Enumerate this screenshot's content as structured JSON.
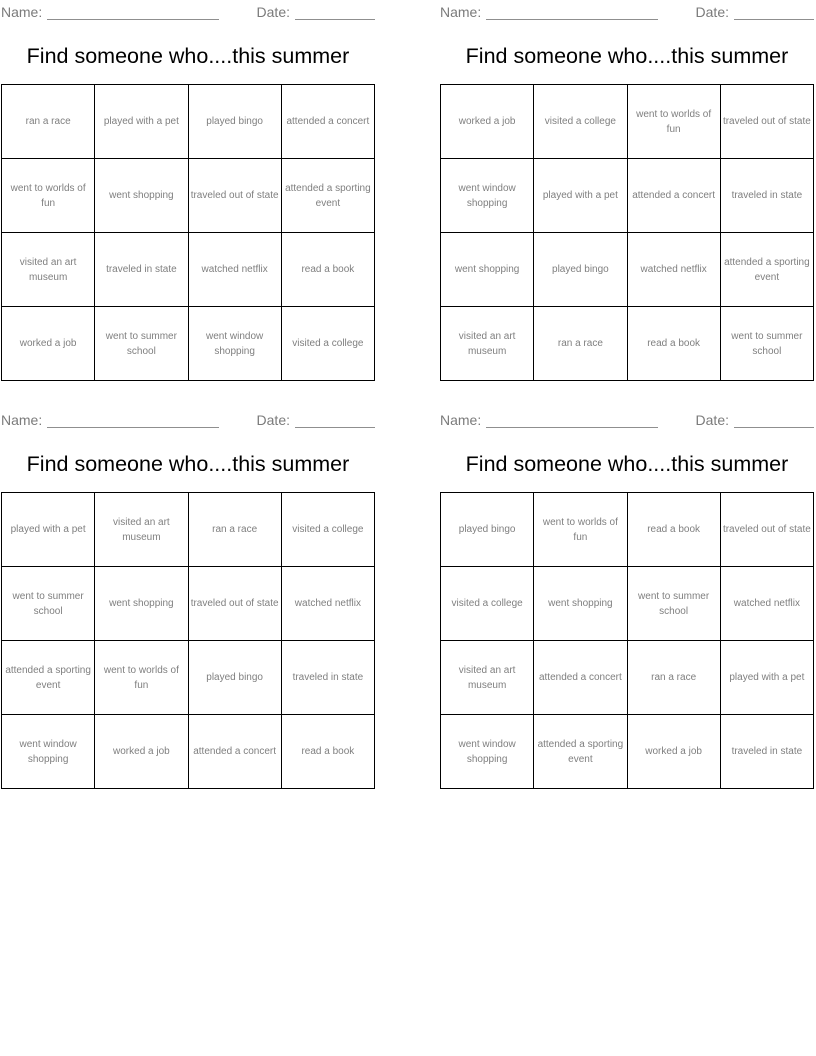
{
  "labels": {
    "name": "Name:",
    "date": "Date:",
    "title": "Find someone who....this summer"
  },
  "colors": {
    "page_background": "#ffffff",
    "title_text": "#000000",
    "cell_text": "#7f7f7f",
    "field_text": "#7b7b7b",
    "blank_line": "#8f8f8f",
    "grid_border": "#000000"
  },
  "cards": [
    {
      "rows": [
        [
          "ran a race",
          "played with a pet",
          "played bingo",
          "attended a concert"
        ],
        [
          "went to worlds of fun",
          "went shopping",
          "traveled out of state",
          "attended a sporting event"
        ],
        [
          "visited an art museum",
          "traveled in state",
          "watched netflix",
          "read a book"
        ],
        [
          "worked a job",
          "went to summer school",
          "went window shopping",
          "visited a college"
        ]
      ]
    },
    {
      "rows": [
        [
          "worked a job",
          "visited a college",
          "went to worlds of fun",
          "traveled out of state"
        ],
        [
          "went window shopping",
          "played with a pet",
          "attended a concert",
          "traveled in state"
        ],
        [
          "went shopping",
          "played bingo",
          "watched netflix",
          "attended a sporting event"
        ],
        [
          "visited an art museum",
          "ran a race",
          "read a book",
          "went to summer school"
        ]
      ]
    },
    {
      "rows": [
        [
          "played with a pet",
          "visited an art museum",
          "ran a race",
          "visited a college"
        ],
        [
          "went to summer school",
          "went shopping",
          "traveled out of state",
          "watched netflix"
        ],
        [
          "attended a sporting event",
          "went to worlds of fun",
          "played bingo",
          "traveled in state"
        ],
        [
          "went window shopping",
          "worked a job",
          "attended a concert",
          "read a book"
        ]
      ]
    },
    {
      "rows": [
        [
          "played bingo",
          "went to worlds of fun",
          "read a book",
          "traveled out of state"
        ],
        [
          "visited a college",
          "went shopping",
          "went to summer school",
          "watched netflix"
        ],
        [
          "visited an art museum",
          "attended a concert",
          "ran a race",
          "played with a pet"
        ],
        [
          "went window shopping",
          "attended a sporting event",
          "worked a job",
          "traveled in state"
        ]
      ]
    }
  ]
}
